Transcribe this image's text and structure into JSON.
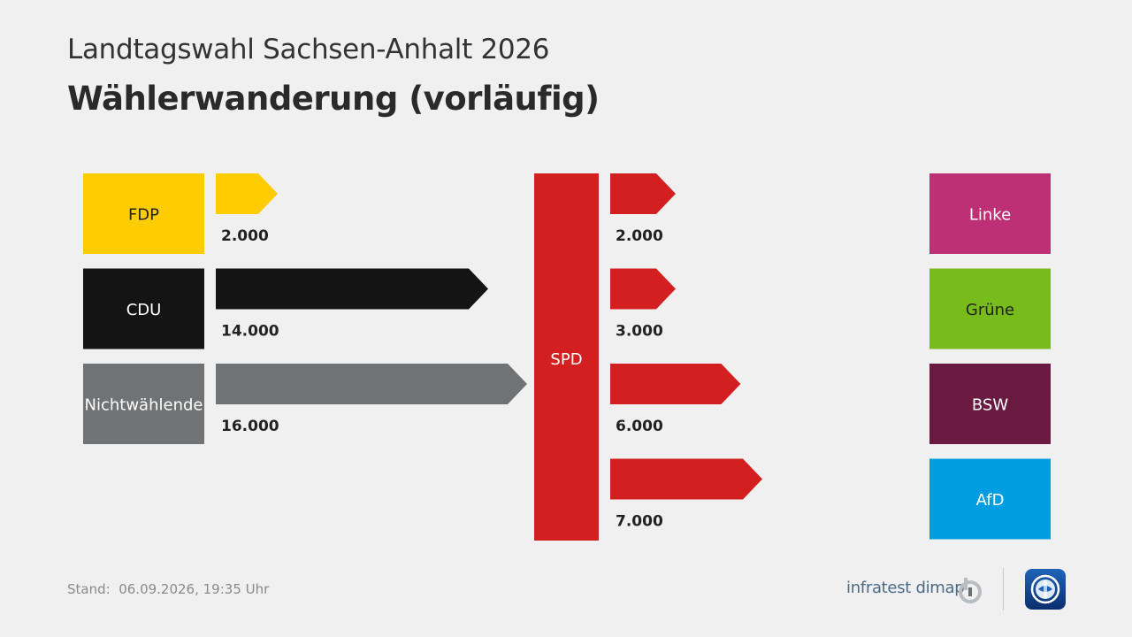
{
  "header": {
    "subtitle": "Landtagswahl Sachsen-Anhalt 2026",
    "title": "Wählerwanderung (vorläufig)"
  },
  "chart_data": {
    "type": "bar",
    "center": {
      "label": "SPD",
      "color": "#d31f1f"
    },
    "inflows": [
      {
        "party": "FDP",
        "value": 2000,
        "label": "2.000",
        "color": "#ffcc00",
        "text_color": "#222222"
      },
      {
        "party": "CDU",
        "value": 14000,
        "label": "14.000",
        "color": "#141414",
        "text_color": "#ffffff"
      },
      {
        "party": "Nichtwählende",
        "value": 16000,
        "label": "16.000",
        "color": "#717273",
        "text_color": "#ffffff"
      }
    ],
    "outflows": [
      {
        "party": "Linke",
        "value": 2000,
        "label": "2.000",
        "color": "#be3075",
        "text_color": "#ffffff"
      },
      {
        "party": "Grüne",
        "value": 3000,
        "label": "3.000",
        "color": "#78bc1b",
        "text_color": "#222222"
      },
      {
        "party": "BSW",
        "value": 6000,
        "label": "6.000",
        "color": "#6a1a41",
        "text_color": "#ffffff"
      },
      {
        "party": "AfD",
        "value": 7000,
        "label": "7.000",
        "color": "#009de0",
        "text_color": "#ffffff"
      }
    ],
    "flow_arrow_color_out": "#d31f1f"
  },
  "footer": {
    "stand": "Stand:  06.09.2026, 19:35 Uhr",
    "brand": "infratest dimap"
  }
}
